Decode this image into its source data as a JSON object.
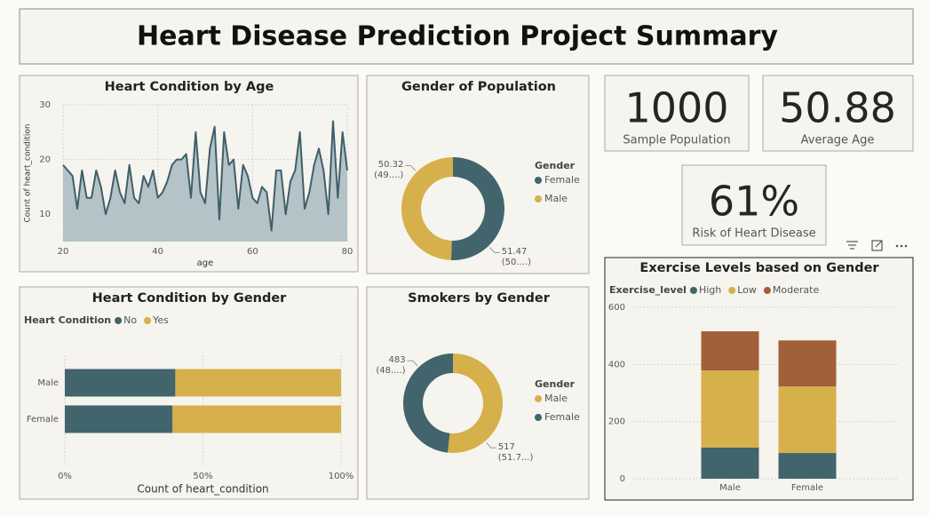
{
  "header": {
    "title": "Heart Disease Prediction Project Summary"
  },
  "cards": [
    {
      "value": "1000",
      "label": "Sample Population"
    },
    {
      "value": "50.88",
      "label": "Average Age"
    },
    {
      "value": "61%",
      "label": "Risk of Heart Disease"
    }
  ],
  "chart_data": [
    {
      "type": "area",
      "title": "Heart Condition by Age",
      "x": [
        20,
        21,
        22,
        23,
        24,
        25,
        26,
        27,
        28,
        29,
        30,
        31,
        32,
        33,
        34,
        35,
        36,
        37,
        38,
        39,
        40,
        41,
        42,
        43,
        44,
        45,
        46,
        47,
        48,
        49,
        50,
        51,
        52,
        53,
        54,
        55,
        56,
        57,
        58,
        59,
        60,
        61,
        62,
        63,
        64,
        65,
        66,
        67,
        68,
        69,
        70,
        71,
        72,
        73,
        74,
        75,
        76,
        77,
        78,
        79,
        80
      ],
      "values": [
        19,
        18,
        17,
        11,
        18,
        13,
        13,
        18,
        15,
        10,
        13,
        18,
        14,
        12,
        19,
        13,
        12,
        17,
        15,
        18,
        13,
        14,
        16,
        19,
        20,
        20,
        21,
        13,
        25,
        14,
        12,
        22,
        26,
        9,
        25,
        19,
        20,
        11,
        19,
        17,
        13,
        12,
        15,
        14,
        7,
        18,
        18,
        10,
        16,
        18,
        25,
        11,
        14,
        19,
        22,
        18,
        10,
        27,
        13,
        25,
        18
      ],
      "color": "#3f5f6a",
      "fill": "#b4c3c7",
      "xlabel": "age",
      "ylabel": "Count of heart_condition",
      "xlim": [
        20,
        80
      ],
      "ylim": [
        5,
        30
      ],
      "xticks": [
        20,
        40,
        60,
        80
      ],
      "yticks": [
        10,
        20,
        30
      ],
      "grid": true
    },
    {
      "type": "donut",
      "title": "Gender of Population",
      "legend_title": "Gender",
      "categories": [
        "Female",
        "Male"
      ],
      "values": [
        51.47,
        50.32
      ],
      "value_labels": [
        "51.47 (50....)",
        "50.32 (49....)"
      ],
      "colors": [
        "#41646d",
        "#d5b04b"
      ]
    },
    {
      "type": "bar",
      "horizontal": true,
      "title": "Heart Condition by Gender",
      "legend_title": "Heart Condition",
      "categories": [
        "Male",
        "Female"
      ],
      "series": [
        {
          "name": "No",
          "color": "#41646d",
          "values": [
            40,
            39
          ]
        },
        {
          "name": "Yes",
          "color": "#d5b04b",
          "values": [
            60,
            61
          ]
        }
      ],
      "xlabel": "Count of heart_condition",
      "xlim": [
        0,
        100
      ],
      "xticks": [
        {
          "value": 0,
          "label": "0%"
        },
        {
          "value": 50,
          "label": "50%"
        },
        {
          "value": 100,
          "label": "100%"
        }
      ],
      "grid": true
    },
    {
      "type": "donut",
      "title": "Smokers by Gender",
      "legend_title": "Gender",
      "categories": [
        "Male",
        "Female"
      ],
      "values": [
        517,
        483
      ],
      "value_labels": [
        "517 (51.7...)",
        "483 (48....)"
      ],
      "colors": [
        "#d5b04b",
        "#41646d"
      ]
    },
    {
      "type": "bar",
      "horizontal": false,
      "title": "Exercise Levels based on Gender",
      "legend_title": "Exercise_level",
      "categories": [
        "Male",
        "Female"
      ],
      "series": [
        {
          "name": "High",
          "color": "#41646d",
          "values": [
            109,
            90
          ]
        },
        {
          "name": "Low",
          "color": "#d5b04b",
          "values": [
            270,
            233
          ]
        },
        {
          "name": "Moderate",
          "color": "#a2603a",
          "values": [
            137,
            161
          ]
        }
      ],
      "ylim": [
        0,
        600
      ],
      "yticks": [
        0,
        200,
        400,
        600
      ],
      "grid": true
    }
  ]
}
